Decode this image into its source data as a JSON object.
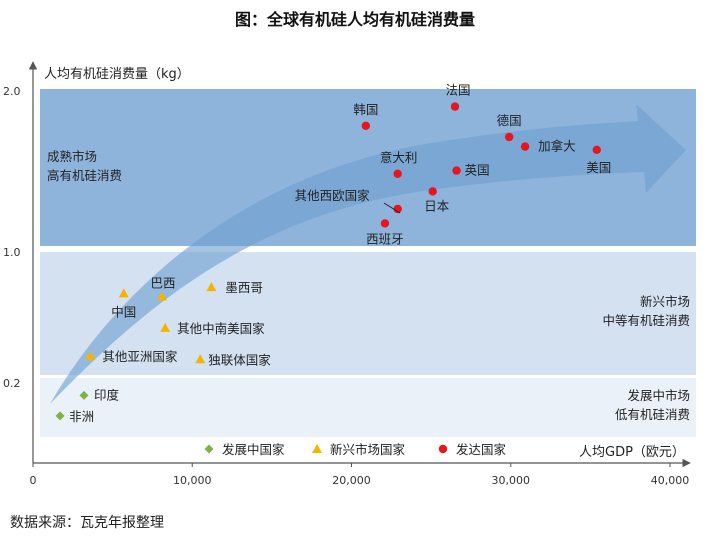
{
  "page": {
    "title": "图：全球有机硅人均有机硅消费量",
    "source": "数据来源：瓦克年报整理"
  },
  "chart_data": {
    "type": "scatter",
    "title": "图：全球有机硅人均有机硅消费量",
    "xlabel": "人均GDP（欧元）",
    "ylabel": "人均有机硅消费量（kg）",
    "xlim": [
      0,
      40000
    ],
    "x_ticks": [
      0,
      10000,
      20000,
      30000,
      40000
    ],
    "x_tick_labels": [
      "0",
      "10,000",
      "20,000",
      "30,000",
      "40,000"
    ],
    "y_ticks": [
      2.0,
      1.0,
      0.2
    ],
    "y_tick_labels": [
      "2.0",
      "1.0",
      "0.2"
    ],
    "bands": [
      {
        "label_lines": [
          "成熟市场",
          "高有机硅消费"
        ],
        "y_from": 1.0,
        "y_to": 2.0,
        "color": "#8fb4dc",
        "label_side": "left"
      },
      {
        "label_lines": [
          "新兴市场",
          "中等有机硅消费"
        ],
        "y_from": 0.2,
        "y_to": 1.0,
        "color": "#d3e1f0",
        "label_side": "right"
      },
      {
        "label_lines": [
          "发展中市场",
          "低有机硅消费"
        ],
        "y_from": -0.03,
        "y_to": 0.2,
        "color": "#eaf1f8",
        "label_side": "right"
      }
    ],
    "legend_position": "bottom",
    "series": [
      {
        "name": "发展中国家",
        "marker": "diamond",
        "color": "#7cb342",
        "points": [
          {
            "label": "印度",
            "x": 3200,
            "y": 0.07
          },
          {
            "label": "非洲",
            "x": 1700,
            "y": -0.06
          }
        ]
      },
      {
        "name": "新兴市场国家",
        "marker": "triangle",
        "color": "#f5b300",
        "points": [
          {
            "label": "中国",
            "x": 5700,
            "y": 0.72
          },
          {
            "label": "巴西",
            "x": 8100,
            "y": 0.7
          },
          {
            "label": "墨西哥",
            "x": 11200,
            "y": 0.76
          },
          {
            "label": "其他中南美国家",
            "x": 8300,
            "y": 0.5
          },
          {
            "label": "其他亚洲国家",
            "x": 3600,
            "y": 0.32
          },
          {
            "label": "独联体国家",
            "x": 10500,
            "y": 0.3
          }
        ]
      },
      {
        "name": "发达国家",
        "marker": "circle",
        "color": "#e8141e",
        "points": [
          {
            "label": "韩国",
            "x": 20900,
            "y": 1.77
          },
          {
            "label": "法国",
            "x": 26500,
            "y": 1.89
          },
          {
            "label": "德国",
            "x": 29900,
            "y": 1.7
          },
          {
            "label": "加拿大",
            "x": 30900,
            "y": 1.64
          },
          {
            "label": "美国",
            "x": 35400,
            "y": 1.62
          },
          {
            "label": "意大利",
            "x": 22900,
            "y": 1.47
          },
          {
            "label": "英国",
            "x": 26600,
            "y": 1.49
          },
          {
            "label": "日本",
            "x": 25100,
            "y": 1.36
          },
          {
            "label": "其他西欧国家",
            "x": 22900,
            "y": 1.25
          },
          {
            "label": "西班牙",
            "x": 22100,
            "y": 1.16
          }
        ]
      }
    ]
  }
}
